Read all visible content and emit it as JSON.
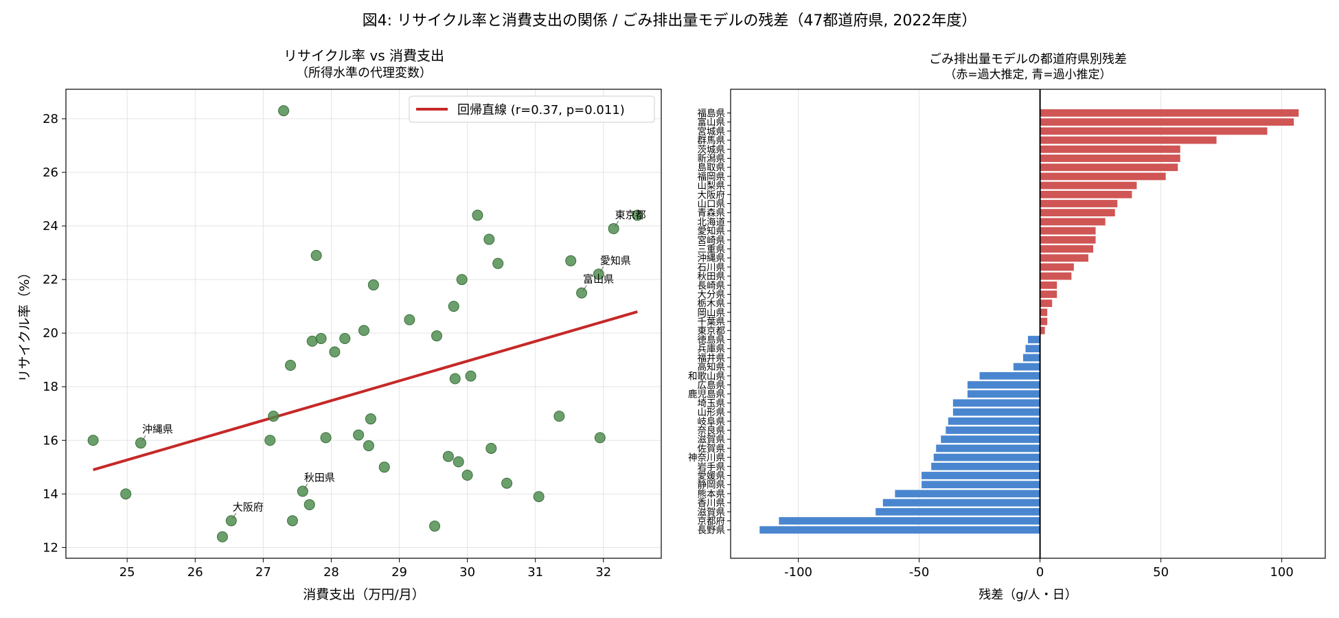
{
  "figure": {
    "suptitle": "図4: リサイクル率と消費支出の関係 / ごみ排出量モデルの残差（47都道府県, 2022年度）"
  },
  "chart_data": [
    {
      "type": "scatter",
      "title": "リサイクル率 vs 消費支出",
      "subtitle": "（所得水準の代理変数）",
      "xlabel": "消費支出（万円/月）",
      "ylabel": "リサイクル率（%）",
      "xlim": [
        24.1,
        32.85
      ],
      "ylim": [
        11.6,
        29.1
      ],
      "xticks": [
        25,
        26,
        27,
        28,
        29,
        30,
        31,
        32
      ],
      "yticks": [
        12,
        14,
        16,
        18,
        20,
        22,
        24,
        26,
        28
      ],
      "grid": true,
      "legend_position": "top-right",
      "point_color": "#4a8a4a",
      "regression": {
        "label": "回帰直線 (r=0.37, p=0.011)",
        "color": "#c62828",
        "x": [
          24.5,
          32.5
        ],
        "y": [
          14.9,
          20.8
        ]
      },
      "points": [
        {
          "x": 24.5,
          "y": 16.0
        },
        {
          "x": 24.98,
          "y": 14.0
        },
        {
          "x": 25.2,
          "y": 15.9,
          "label": "沖縄県"
        },
        {
          "x": 26.4,
          "y": 12.4
        },
        {
          "x": 26.53,
          "y": 13.0,
          "label": "大阪府"
        },
        {
          "x": 27.1,
          "y": 16.0
        },
        {
          "x": 27.15,
          "y": 16.9
        },
        {
          "x": 27.3,
          "y": 28.3
        },
        {
          "x": 27.4,
          "y": 18.8
        },
        {
          "x": 27.43,
          "y": 13.0
        },
        {
          "x": 27.58,
          "y": 14.1,
          "label": "秋田県"
        },
        {
          "x": 27.68,
          "y": 13.6
        },
        {
          "x": 27.72,
          "y": 19.7
        },
        {
          "x": 27.78,
          "y": 22.9
        },
        {
          "x": 27.85,
          "y": 19.8
        },
        {
          "x": 27.92,
          "y": 16.1
        },
        {
          "x": 28.05,
          "y": 19.3
        },
        {
          "x": 28.2,
          "y": 19.8
        },
        {
          "x": 28.4,
          "y": 16.2
        },
        {
          "x": 28.48,
          "y": 20.1
        },
        {
          "x": 28.55,
          "y": 15.8
        },
        {
          "x": 28.58,
          "y": 16.8
        },
        {
          "x": 28.62,
          "y": 21.8
        },
        {
          "x": 28.78,
          "y": 15.0
        },
        {
          "x": 29.15,
          "y": 20.5
        },
        {
          "x": 29.52,
          "y": 12.8
        },
        {
          "x": 29.55,
          "y": 19.9
        },
        {
          "x": 29.72,
          "y": 15.4
        },
        {
          "x": 29.8,
          "y": 21.0
        },
        {
          "x": 29.82,
          "y": 18.3
        },
        {
          "x": 29.87,
          "y": 15.2
        },
        {
          "x": 29.92,
          "y": 22.0
        },
        {
          "x": 30.0,
          "y": 14.7
        },
        {
          "x": 30.05,
          "y": 18.4
        },
        {
          "x": 30.15,
          "y": 24.4
        },
        {
          "x": 30.32,
          "y": 23.5
        },
        {
          "x": 30.35,
          "y": 15.7
        },
        {
          "x": 30.45,
          "y": 22.6
        },
        {
          "x": 30.58,
          "y": 14.4
        },
        {
          "x": 31.05,
          "y": 13.9
        },
        {
          "x": 31.35,
          "y": 16.9
        },
        {
          "x": 31.52,
          "y": 22.7
        },
        {
          "x": 31.68,
          "y": 21.5,
          "label": "富山県"
        },
        {
          "x": 31.93,
          "y": 22.2,
          "label": "愛知県"
        },
        {
          "x": 31.95,
          "y": 16.1
        },
        {
          "x": 32.15,
          "y": 23.9,
          "label": "東京都"
        },
        {
          "x": 32.5,
          "y": 24.4
        }
      ]
    },
    {
      "type": "bar",
      "orientation": "horizontal",
      "title": "ごみ排出量モデルの都道府県別残差",
      "subtitle": "（赤=過大推定, 青=過小推定）",
      "xlabel": "残差（g/人・日）",
      "ylabel": "",
      "xlim": [
        -128,
        118
      ],
      "xticks": [
        -100,
        -50,
        0,
        50,
        100
      ],
      "positive_color": "#d05555",
      "negative_color": "#4a86d0",
      "grid": true,
      "categories": [
        "福島県",
        "富山県",
        "宮城県",
        "群馬県",
        "茨城県",
        "新潟県",
        "島取県",
        "福岡県",
        "山梨県",
        "大阪府",
        "山口県",
        "青森県",
        "北海道",
        "愛知県",
        "宮崎県",
        "三重県",
        "沖縄県",
        "石川県",
        "秋田県",
        "長崎県",
        "大分県",
        "栃木県",
        "岡山県",
        "千葉県",
        "東京都",
        "徳島県",
        "兵庫県",
        "福井県",
        "高知県",
        "和歌山県",
        "広島県",
        "鹿児島県",
        "埼玉県",
        "山形県",
        "岐阜県",
        "奈良県",
        "滋賀県",
        "佐賀県",
        "神奈川県",
        "岩手県",
        "愛媛県",
        "静岡県",
        "熊本県",
        "香川県",
        "滋賀県",
        "京都府",
        "長野県"
      ],
      "values": [
        107,
        105,
        94,
        73,
        58,
        58,
        57,
        52,
        40,
        38,
        32,
        31,
        27,
        23,
        23,
        22,
        20,
        14,
        13,
        7,
        7,
        5,
        3,
        3,
        2,
        -5,
        -6,
        -7,
        -11,
        -25,
        -30,
        -30,
        -36,
        -36,
        -38,
        -39,
        -41,
        -43,
        -44,
        -45,
        -49,
        -49,
        -60,
        -65,
        -68,
        -108,
        -116
      ]
    }
  ]
}
